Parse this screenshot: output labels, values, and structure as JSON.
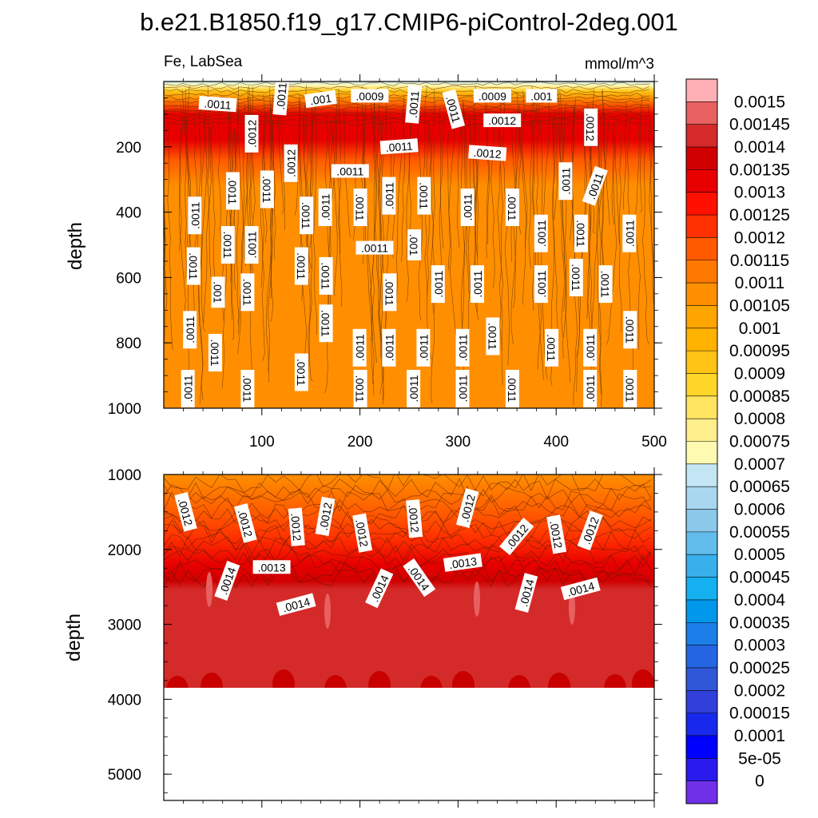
{
  "title": "b.e21.B1850.f19_g17.CMIP6-piControl-2deg.001",
  "left_label": "Fe, LabSea",
  "units": "mmol/m^3",
  "chart_data": [
    {
      "type": "heatmap",
      "name": "upper",
      "xlabel": "",
      "ylabel": "depth",
      "xlim": [
        0,
        500
      ],
      "ylim": [
        1000,
        0
      ],
      "x_ticks": [
        100,
        200,
        300,
        400,
        500
      ],
      "y_ticks": [
        200,
        400,
        600,
        800,
        1000
      ],
      "contour_labels": [
        {
          "text": ".0011",
          "x": 55,
          "y": 70,
          "angle": 4
        },
        {
          "text": ".0011",
          "x": 120,
          "y": 45,
          "angle": -85
        },
        {
          "text": ".001",
          "x": 160,
          "y": 55,
          "angle": -8
        },
        {
          "text": ".0009",
          "x": 210,
          "y": 45,
          "angle": 0
        },
        {
          "text": ".0011",
          "x": 255,
          "y": 70,
          "angle": -85
        },
        {
          "text": ".0011",
          "x": 295,
          "y": 85,
          "angle": 75
        },
        {
          "text": ".0009",
          "x": 335,
          "y": 45,
          "angle": 0
        },
        {
          "text": ".001",
          "x": 385,
          "y": 45,
          "angle": 0
        },
        {
          "text": ".0012",
          "x": 345,
          "y": 120,
          "angle": 0
        },
        {
          "text": ".0012",
          "x": 435,
          "y": 140,
          "angle": 90
        },
        {
          "text": ".0012",
          "x": 90,
          "y": 160,
          "angle": -90
        },
        {
          "text": ".0011",
          "x": 240,
          "y": 200,
          "angle": -4
        },
        {
          "text": ".0012",
          "x": 330,
          "y": 220,
          "angle": 4
        },
        {
          "text": ".0012",
          "x": 130,
          "y": 250,
          "angle": -90
        },
        {
          "text": ".0011",
          "x": 190,
          "y": 275,
          "angle": 0
        },
        {
          "text": ".0011",
          "x": 410,
          "y": 305,
          "angle": -90
        },
        {
          "text": ".0011",
          "x": 440,
          "y": 320,
          "angle": -70
        },
        {
          "text": ".0011",
          "x": 70,
          "y": 335,
          "angle": 90
        },
        {
          "text": ".0011",
          "x": 105,
          "y": 330,
          "angle": 90
        },
        {
          "text": ".0011",
          "x": 145,
          "y": 410,
          "angle": 90
        },
        {
          "text": ".0011",
          "x": 165,
          "y": 385,
          "angle": -90
        },
        {
          "text": ".0011",
          "x": 200,
          "y": 385,
          "angle": 90
        },
        {
          "text": ".0011",
          "x": 230,
          "y": 350,
          "angle": -90
        },
        {
          "text": ".0011",
          "x": 265,
          "y": 350,
          "angle": 90
        },
        {
          "text": ".0011",
          "x": 310,
          "y": 385,
          "angle": -90
        },
        {
          "text": ".0011",
          "x": 355,
          "y": 385,
          "angle": 90
        },
        {
          "text": ".0011",
          "x": 32,
          "y": 410,
          "angle": -90
        },
        {
          "text": ".0011",
          "x": 385,
          "y": 465,
          "angle": -90
        },
        {
          "text": ".0011",
          "x": 425,
          "y": 465,
          "angle": 90
        },
        {
          "text": ".0011",
          "x": 475,
          "y": 465,
          "angle": -90
        },
        {
          "text": ".0011",
          "x": 65,
          "y": 500,
          "angle": 90
        },
        {
          "text": ".0011",
          "x": 90,
          "y": 500,
          "angle": -90
        },
        {
          "text": ".0011",
          "x": 215,
          "y": 510,
          "angle": 0
        },
        {
          "text": ".001",
          "x": 255,
          "y": 500,
          "angle": 90
        },
        {
          "text": ".0011",
          "x": 30,
          "y": 565,
          "angle": 90
        },
        {
          "text": ".0011",
          "x": 140,
          "y": 565,
          "angle": 90
        },
        {
          "text": ".0011",
          "x": 165,
          "y": 595,
          "angle": 90
        },
        {
          "text": ".0011",
          "x": 230,
          "y": 645,
          "angle": 90
        },
        {
          "text": ".0011",
          "x": 280,
          "y": 620,
          "angle": -90
        },
        {
          "text": ".0011",
          "x": 320,
          "y": 620,
          "angle": -90
        },
        {
          "text": ".0011",
          "x": 385,
          "y": 620,
          "angle": -90
        },
        {
          "text": ".0011",
          "x": 420,
          "y": 600,
          "angle": 90
        },
        {
          "text": ".0011",
          "x": 450,
          "y": 620,
          "angle": 90
        },
        {
          "text": ".001",
          "x": 55,
          "y": 645,
          "angle": 90
        },
        {
          "text": ".0011",
          "x": 85,
          "y": 645,
          "angle": 90
        },
        {
          "text": ".0011",
          "x": 165,
          "y": 740,
          "angle": 90
        },
        {
          "text": ".0011",
          "x": 27,
          "y": 760,
          "angle": -90
        },
        {
          "text": ".0011",
          "x": 475,
          "y": 760,
          "angle": 90
        },
        {
          "text": ".0011",
          "x": 200,
          "y": 815,
          "angle": -90
        },
        {
          "text": ".0011",
          "x": 230,
          "y": 815,
          "angle": -90
        },
        {
          "text": ".0011",
          "x": 265,
          "y": 815,
          "angle": -90
        },
        {
          "text": ".0011",
          "x": 305,
          "y": 815,
          "angle": -90
        },
        {
          "text": ".0011",
          "x": 335,
          "y": 780,
          "angle": 90
        },
        {
          "text": ".0011",
          "x": 395,
          "y": 815,
          "angle": 90
        },
        {
          "text": ".0011",
          "x": 435,
          "y": 815,
          "angle": -90
        },
        {
          "text": ".0011",
          "x": 52,
          "y": 830,
          "angle": 90
        },
        {
          "text": ".0011",
          "x": 140,
          "y": 890,
          "angle": 90
        },
        {
          "text": ".0011",
          "x": 25,
          "y": 940,
          "angle": -90
        },
        {
          "text": ".0011",
          "x": 85,
          "y": 940,
          "angle": 90
        },
        {
          "text": ".0011",
          "x": 200,
          "y": 940,
          "angle": 90
        },
        {
          "text": ".0011",
          "x": 255,
          "y": 940,
          "angle": -90
        },
        {
          "text": ".0011",
          "x": 305,
          "y": 940,
          "angle": -90
        },
        {
          "text": ".0011",
          "x": 355,
          "y": 940,
          "angle": 90
        },
        {
          "text": ".0011",
          "x": 435,
          "y": 940,
          "angle": -90
        },
        {
          "text": ".0011",
          "x": 475,
          "y": 940,
          "angle": 90
        }
      ]
    },
    {
      "type": "heatmap",
      "name": "lower",
      "xlabel": "",
      "ylabel": "depth",
      "xlim": [
        0,
        500
      ],
      "ylim": [
        5350,
        1000
      ],
      "y_ticks": [
        1000,
        2000,
        3000,
        4000,
        5000
      ],
      "data_bottom_depth": 3870,
      "contour_labels": [
        {
          "text": ".0012",
          "x": 22,
          "y": 1500,
          "angle": 75
        },
        {
          "text": ".0012",
          "x": 83,
          "y": 1650,
          "angle": 75
        },
        {
          "text": ".0012",
          "x": 135,
          "y": 1700,
          "angle": 85
        },
        {
          "text": ".0012",
          "x": 165,
          "y": 1560,
          "angle": -80
        },
        {
          "text": ".0012",
          "x": 202,
          "y": 1780,
          "angle": 80
        },
        {
          "text": ".0012",
          "x": 255,
          "y": 1590,
          "angle": 85
        },
        {
          "text": ".0012",
          "x": 310,
          "y": 1450,
          "angle": -75
        },
        {
          "text": ".0012",
          "x": 360,
          "y": 1830,
          "angle": -50
        },
        {
          "text": ".0012",
          "x": 400,
          "y": 1800,
          "angle": 80
        },
        {
          "text": ".0012",
          "x": 435,
          "y": 1750,
          "angle": -70
        },
        {
          "text": ".0013",
          "x": 110,
          "y": 2240,
          "angle": 0
        },
        {
          "text": ".0013",
          "x": 305,
          "y": 2180,
          "angle": -8
        },
        {
          "text": ".0014",
          "x": 65,
          "y": 2420,
          "angle": -70
        },
        {
          "text": ".0014",
          "x": 135,
          "y": 2740,
          "angle": -15
        },
        {
          "text": ".0014",
          "x": 220,
          "y": 2520,
          "angle": -65
        },
        {
          "text": ".0014",
          "x": 260,
          "y": 2380,
          "angle": 55
        },
        {
          "text": ".0014",
          "x": 370,
          "y": 2580,
          "angle": -75
        },
        {
          "text": ".0014",
          "x": 425,
          "y": 2530,
          "angle": -15
        }
      ]
    }
  ],
  "colorbar": {
    "labels": [
      "0.0015",
      "0.00145",
      "0.0014",
      "0.00135",
      "0.0013",
      "0.00125",
      "0.0012",
      "0.00115",
      "0.0011",
      "0.00105",
      "0.001",
      "0.00095",
      "0.0009",
      "0.00085",
      "0.0008",
      "0.00075",
      "0.0007",
      "0.00065",
      "0.0006",
      "0.00055",
      "0.0005",
      "0.00045",
      "0.0004",
      "0.00035",
      "0.0003",
      "0.00025",
      "0.0002",
      "0.00015",
      "0.0001",
      "5e-05",
      "0"
    ],
    "colors": [
      "#ffb0b4",
      "#e86060",
      "#d42a2a",
      "#d10000",
      "#e80000",
      "#ff1000",
      "#ff3000",
      "#ff5a00",
      "#ff7800",
      "#ff8f00",
      "#ffa500",
      "#ffb300",
      "#ffc414",
      "#ffd62a",
      "#ffe462",
      "#ffef8c",
      "#fffab2",
      "#c4e5f4",
      "#a8d7ef",
      "#8bc8ea",
      "#62bcec",
      "#38b0ec",
      "#15b0f0",
      "#0098ea",
      "#1a7fe8",
      "#2466e4",
      "#2f57d8",
      "#3040d8",
      "#1828ec",
      "#0000ff",
      "#2a1aee",
      "#7030e8"
    ]
  }
}
